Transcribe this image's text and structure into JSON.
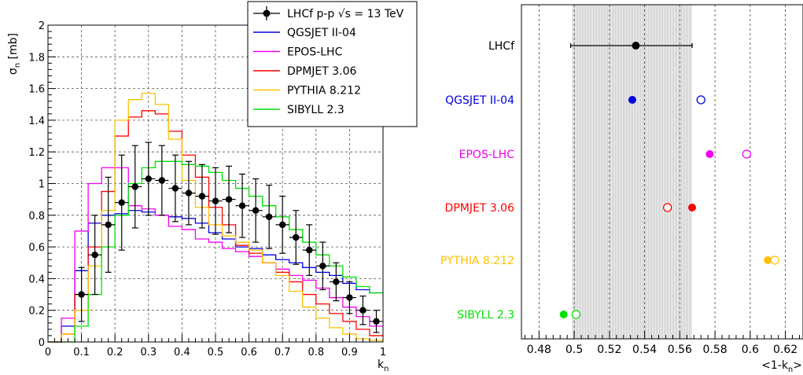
{
  "chart_data": [
    {
      "type": "line",
      "subtype": "histogram",
      "xlabel_main": "k",
      "xlabel_sub": "n",
      "ylabel_main": "σ",
      "ylabel_sub": "n",
      "ylabel_unit": " [mb]",
      "xlim": [
        0,
        1
      ],
      "ylim": [
        0,
        2
      ],
      "x_ticks": [
        0,
        0.1,
        0.2,
        0.3,
        0.4,
        0.5,
        0.6,
        0.7,
        0.8,
        0.9,
        1
      ],
      "x_tick_labels": [
        "0",
        "0.1",
        "0.2",
        "0.3",
        "0.4",
        "0.5",
        "0.6",
        "0.7",
        "0.8",
        "0.9",
        "1"
      ],
      "y_ticks": [
        0,
        0.2,
        0.4,
        0.6,
        0.8,
        1,
        1.2,
        1.4,
        1.6,
        1.8,
        2
      ],
      "y_tick_labels": [
        "0",
        "0.2",
        "0.4",
        "0.6",
        "0.8",
        "1",
        "1.2",
        "1.4",
        "1.6",
        "1.8",
        "2"
      ],
      "grid": true,
      "legend_position": "top-right",
      "bin_edges": [
        0,
        0.04,
        0.08,
        0.12,
        0.16,
        0.2,
        0.24,
        0.28,
        0.32,
        0.36,
        0.4,
        0.44,
        0.48,
        0.52,
        0.56,
        0.6,
        0.64,
        0.68,
        0.72,
        0.76,
        0.8,
        0.84,
        0.88,
        0.92,
        0.96,
        1
      ],
      "data_series": {
        "name": "LHCf p-p  √s = 13 TeV",
        "color": "#000000",
        "x": [
          0.1,
          0.14,
          0.18,
          0.22,
          0.26,
          0.3,
          0.34,
          0.38,
          0.42,
          0.46,
          0.5,
          0.54,
          0.58,
          0.62,
          0.66,
          0.7,
          0.74,
          0.78,
          0.82,
          0.86,
          0.9,
          0.94,
          0.98
        ],
        "y": [
          0.3,
          0.55,
          0.74,
          0.88,
          0.98,
          1.03,
          1.02,
          0.97,
          0.94,
          0.92,
          0.89,
          0.9,
          0.86,
          0.83,
          0.79,
          0.74,
          0.66,
          0.58,
          0.48,
          0.38,
          0.28,
          0.2,
          0.13
        ],
        "err": [
          0.17,
          0.25,
          0.3,
          0.3,
          0.26,
          0.23,
          0.22,
          0.21,
          0.2,
          0.2,
          0.21,
          0.21,
          0.2,
          0.2,
          0.2,
          0.18,
          0.17,
          0.16,
          0.15,
          0.12,
          0.1,
          0.09,
          0.07
        ]
      },
      "series": [
        {
          "name": "QGSJET II-04",
          "color": "#0000e0",
          "values": [
            0.0,
            0.1,
            0.45,
            0.75,
            0.8,
            0.81,
            0.83,
            0.82,
            0.8,
            0.79,
            0.78,
            0.75,
            0.69,
            0.65,
            0.6,
            0.59,
            0.55,
            0.52,
            0.5,
            0.47,
            0.44,
            0.42,
            0.37,
            0.33,
            0.31
          ]
        },
        {
          "name": "EPOS-LHC",
          "color": "#f000f0",
          "values": [
            0.0,
            0.15,
            0.7,
            1.0,
            1.1,
            1.1,
            0.86,
            0.84,
            0.8,
            0.73,
            0.71,
            0.65,
            0.63,
            0.59,
            0.57,
            0.54,
            0.5,
            0.46,
            0.42,
            0.39,
            0.34,
            0.28,
            0.22,
            0.16,
            0.1
          ]
        },
        {
          "name": "DPMJET 3.06",
          "color": "#ff0000",
          "values": [
            0.0,
            0.05,
            0.3,
            0.6,
            0.95,
            1.3,
            1.42,
            1.46,
            1.44,
            1.33,
            1.18,
            1.04,
            0.85,
            0.74,
            0.61,
            0.56,
            0.5,
            0.44,
            0.38,
            0.3,
            0.24,
            0.18,
            0.13,
            0.08,
            0.04
          ]
        },
        {
          "name": "PYTHIA 8.212",
          "color": "#ffc000",
          "values": [
            0.0,
            0.05,
            0.2,
            0.48,
            0.83,
            1.4,
            1.53,
            1.57,
            1.5,
            1.28,
            1.02,
            0.85,
            0.74,
            0.67,
            0.63,
            0.58,
            0.5,
            0.42,
            0.32,
            0.22,
            0.15,
            0.09,
            0.05,
            0.02,
            0.01
          ]
        },
        {
          "name": "SIBYLL 2.3",
          "color": "#00e000",
          "values": [
            0.0,
            0.0,
            0.1,
            0.3,
            0.6,
            0.8,
            1.0,
            1.1,
            1.14,
            1.14,
            1.12,
            1.11,
            1.07,
            1.02,
            0.97,
            0.92,
            0.86,
            0.79,
            0.71,
            0.63,
            0.55,
            0.48,
            0.41,
            0.35,
            0.31
          ]
        }
      ]
    },
    {
      "type": "scatter",
      "subtype": "dot-plot",
      "xlabel": "<1-k",
      "xlabel_sub": "n",
      "xlabel_end": ">",
      "xlim": [
        0.47,
        0.63
      ],
      "x_ticks": [
        0.48,
        0.5,
        0.52,
        0.54,
        0.56,
        0.58,
        0.6,
        0.62
      ],
      "x_tick_labels": [
        "0.48",
        "0.5",
        "0.52",
        "0.54",
        "0.56",
        "0.58",
        "0.6",
        "0.62"
      ],
      "grid": true,
      "band": [
        0.499,
        0.567
      ],
      "categories": [
        "LHCf",
        "QGSJET II-04",
        "EPOS-LHC",
        "DPMJET 3.06",
        "PYTHIA 8.212",
        "SIBYLL 2.3"
      ],
      "colors": [
        "#000000",
        "#0000e0",
        "#f000f0",
        "#ff0000",
        "#ffc000",
        "#00e000"
      ],
      "filled": [
        0.535,
        0.533,
        0.577,
        0.567,
        0.61,
        0.494
      ],
      "open": [
        null,
        0.572,
        0.598,
        0.553,
        0.614,
        0.501
      ],
      "error": [
        [
          0.498,
          0.567
        ],
        null,
        null,
        null,
        null,
        null
      ]
    }
  ]
}
